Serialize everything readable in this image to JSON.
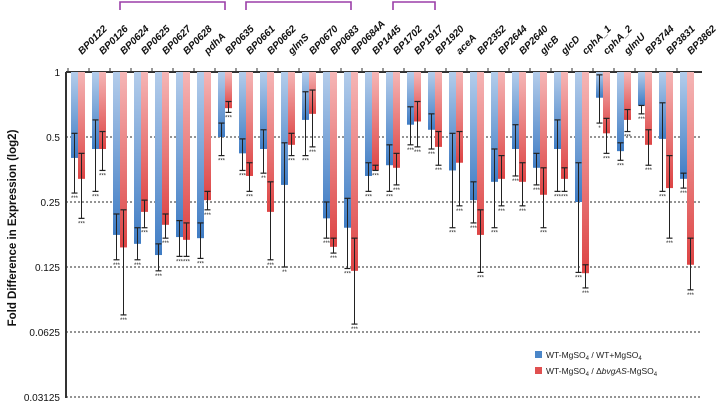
{
  "chart_data": {
    "type": "bar",
    "title": "",
    "xlabel": "",
    "ylabel": "Fold Difference in Expression (log2)",
    "yscale": "log2",
    "ylim": [
      0.03125,
      1
    ],
    "yticks": [
      "1",
      "0.5",
      "0.25",
      "0.125",
      "0.0625",
      "0.03125"
    ],
    "ytick_values": [
      1,
      0.5,
      0.25,
      0.125,
      0.0625,
      0.03125
    ],
    "grid": "dotted horizontal",
    "legend_position": "bottom-right",
    "categories": [
      "BP0122",
      "BP0126",
      "BP0624",
      "BP0625",
      "BP0627",
      "BP0628",
      "pdhA",
      "BP0635",
      "BP0661",
      "BP0662",
      "glmS",
      "BP0670",
      "BP0683",
      "BP0684A",
      "BP1445",
      "BP1702",
      "BP1917",
      "BP1920",
      "aceA",
      "BP2352",
      "BP2644",
      "BP2640",
      "glcB",
      "glcD",
      "cphA_1",
      "cphA_2",
      "glmU",
      "BP3744",
      "BP3831",
      "BP3862"
    ],
    "brackets": [
      [
        "BP0624",
        "BP0635"
      ],
      [
        "BP0661",
        "BP0684A"
      ],
      [
        "BP1702",
        "BP1920"
      ]
    ],
    "series": [
      {
        "name": "WT-MgSO4 / WT+MgSO4",
        "color": "#4a86c8",
        "values": [
          0.4,
          0.44,
          0.176,
          0.16,
          0.142,
          0.172,
          0.17,
          0.5,
          0.42,
          0.44,
          0.3,
          0.6,
          0.21,
          0.19,
          0.33,
          0.37,
          0.57,
          0.54,
          0.35,
          0.255,
          0.31,
          0.44,
          0.36,
          0.44,
          0.25,
          0.76,
          0.43,
          0.7,
          0.49,
          0.32
        ],
        "err_high": [
          0.52,
          0.6,
          0.22,
          0.19,
          0.16,
          0.205,
          0.2,
          0.58,
          0.49,
          0.54,
          0.47,
          0.81,
          0.25,
          0.26,
          0.38,
          0.46,
          0.69,
          0.64,
          0.52,
          0.31,
          0.44,
          0.57,
          0.42,
          0.6,
          0.38,
          0.97,
          0.47,
          0.7,
          0.72,
          0.34
        ],
        "err_low": [
          0.275,
          0.28,
          0.135,
          0.135,
          0.12,
          0.14,
          0.137,
          0.41,
          0.35,
          0.34,
          0.125,
          0.41,
          0.17,
          0.123,
          0.28,
          0.28,
          0.46,
          0.44,
          0.19,
          0.2,
          0.19,
          0.33,
          0.3,
          0.28,
          0.118,
          0.58,
          0.39,
          0.64,
          0.28,
          0.29
        ],
        "significance": [
          "***",
          "***",
          "***",
          "***",
          "***",
          "***",
          "***",
          "***",
          "***",
          "**",
          "**",
          "***",
          "***",
          "***",
          "***",
          "***",
          "***",
          "***",
          "***",
          "***",
          "***",
          "***",
          "***",
          "***",
          "***",
          "*",
          "***",
          "***",
          "***",
          "***"
        ]
      },
      {
        "name": "WT-MgSO4 / ΔbvgAS-MgSO4",
        "color": "#e05050",
        "values": [
          0.32,
          0.44,
          0.154,
          0.225,
          0.196,
          0.167,
          0.255,
          0.68,
          0.33,
          0.225,
          0.46,
          0.64,
          0.155,
          0.12,
          0.35,
          0.36,
          0.59,
          0.45,
          0.38,
          0.176,
          0.32,
          0.31,
          0.27,
          0.32,
          0.117,
          0.52,
          0.6,
          0.46,
          0.29,
          0.128
        ],
        "err_high": [
          0.42,
          0.53,
          0.23,
          0.255,
          0.22,
          0.2,
          0.28,
          0.73,
          0.38,
          0.31,
          0.52,
          0.825,
          0.17,
          0.17,
          0.37,
          0.42,
          0.73,
          0.53,
          0.53,
          0.23,
          0.41,
          0.38,
          0.36,
          0.36,
          0.128,
          0.61,
          0.67,
          0.54,
          0.41,
          0.17
        ],
        "err_low": [
          0.21,
          0.35,
          0.075,
          0.19,
          0.17,
          0.14,
          0.23,
          0.65,
          0.28,
          0.135,
          0.41,
          0.45,
          0.145,
          0.068,
          0.35,
          0.3,
          0.45,
          0.37,
          0.24,
          0.118,
          0.24,
          0.24,
          0.19,
          0.28,
          0.1,
          0.42,
          0.53,
          0.37,
          0.17,
          0.098
        ],
        "significance": [
          "***",
          "***",
          "***",
          "***",
          "***",
          "***",
          "***",
          "***",
          "***",
          "***",
          "***",
          "***",
          "***",
          "***",
          "***",
          "***",
          "***",
          "***",
          "***",
          "***",
          "***",
          "***",
          "***",
          "***",
          "***",
          "***",
          "***",
          "***",
          "***",
          "***"
        ]
      }
    ]
  },
  "legend": {
    "items": [
      {
        "prefix": "WT-MgSO",
        "sub": "4",
        "mid": " / WT+MgSO",
        "sub2": "4",
        "italic": "",
        "suffix": ""
      },
      {
        "prefix": "WT-MgSO",
        "sub": "4",
        "mid": " / Δ",
        "italic": "bvgAS",
        "sub2": "4",
        "suffix": "-MgSO"
      }
    ]
  }
}
